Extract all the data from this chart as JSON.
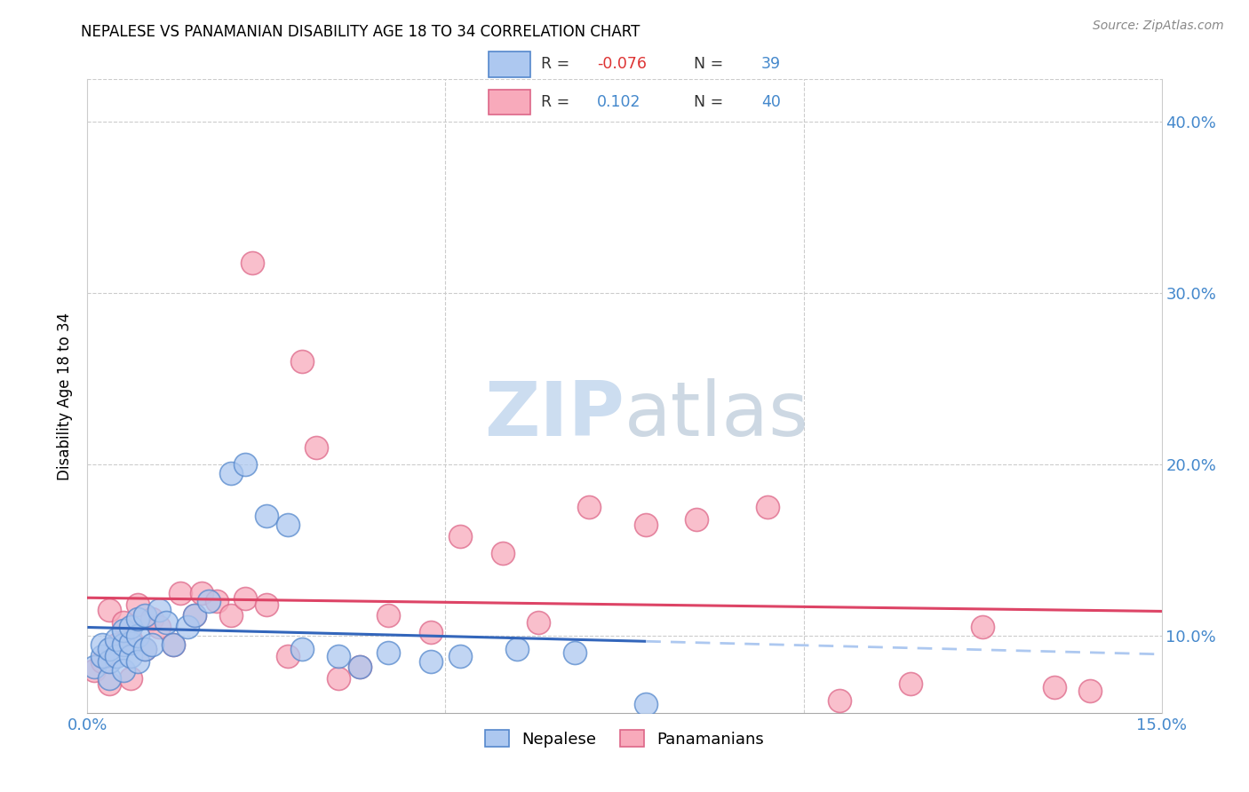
{
  "title": "NEPALESE VS PANAMANIAN DISABILITY AGE 18 TO 34 CORRELATION CHART",
  "source": "Source: ZipAtlas.com",
  "ylabel": "Disability Age 18 to 34",
  "x_min": 0.0,
  "x_max": 0.15,
  "y_min": 0.055,
  "y_max": 0.425,
  "x_ticks": [
    0.0,
    0.05,
    0.1,
    0.15
  ],
  "x_tick_labels": [
    "0.0%",
    "",
    "",
    "15.0%"
  ],
  "y_ticks": [
    0.1,
    0.2,
    0.3,
    0.4
  ],
  "y_tick_labels": [
    "10.0%",
    "20.0%",
    "30.0%",
    "40.0%"
  ],
  "nepalese_color": "#adc8f0",
  "panamanian_color": "#f8aabb",
  "nepalese_edge": "#5588cc",
  "panamanian_edge": "#dd6688",
  "nepalese_R": -0.076,
  "nepalese_N": 39,
  "panamanian_R": 0.102,
  "panamanian_N": 40,
  "trend_blue": "#3366bb",
  "trend_pink": "#dd4466",
  "watermark_color": "#ccddf0",
  "nepalese_x": [
    0.001,
    0.002,
    0.002,
    0.003,
    0.003,
    0.003,
    0.004,
    0.004,
    0.005,
    0.005,
    0.005,
    0.006,
    0.006,
    0.006,
    0.007,
    0.007,
    0.007,
    0.008,
    0.008,
    0.009,
    0.01,
    0.011,
    0.012,
    0.014,
    0.015,
    0.017,
    0.02,
    0.022,
    0.025,
    0.028,
    0.03,
    0.035,
    0.038,
    0.042,
    0.048,
    0.052,
    0.06,
    0.068,
    0.078
  ],
  "nepalese_y": [
    0.082,
    0.088,
    0.095,
    0.075,
    0.085,
    0.092,
    0.088,
    0.098,
    0.08,
    0.095,
    0.103,
    0.088,
    0.096,
    0.105,
    0.085,
    0.1,
    0.11,
    0.092,
    0.112,
    0.095,
    0.115,
    0.108,
    0.095,
    0.105,
    0.112,
    0.12,
    0.195,
    0.2,
    0.17,
    0.165,
    0.092,
    0.088,
    0.082,
    0.09,
    0.085,
    0.088,
    0.092,
    0.09,
    0.06
  ],
  "panamanian_x": [
    0.001,
    0.002,
    0.003,
    0.003,
    0.004,
    0.005,
    0.006,
    0.006,
    0.007,
    0.008,
    0.009,
    0.01,
    0.012,
    0.013,
    0.015,
    0.016,
    0.018,
    0.02,
    0.022,
    0.023,
    0.025,
    0.028,
    0.03,
    0.032,
    0.035,
    0.038,
    0.042,
    0.048,
    0.052,
    0.058,
    0.063,
    0.07,
    0.078,
    0.085,
    0.095,
    0.105,
    0.115,
    0.125,
    0.135,
    0.14
  ],
  "panamanian_y": [
    0.08,
    0.085,
    0.072,
    0.115,
    0.095,
    0.108,
    0.075,
    0.098,
    0.118,
    0.092,
    0.11,
    0.105,
    0.095,
    0.125,
    0.112,
    0.125,
    0.12,
    0.112,
    0.122,
    0.318,
    0.118,
    0.088,
    0.26,
    0.21,
    0.075,
    0.082,
    0.112,
    0.102,
    0.158,
    0.148,
    0.108,
    0.175,
    0.165,
    0.168,
    0.175,
    0.062,
    0.072,
    0.105,
    0.07,
    0.068
  ],
  "background_color": "#ffffff",
  "grid_color": "#cccccc"
}
